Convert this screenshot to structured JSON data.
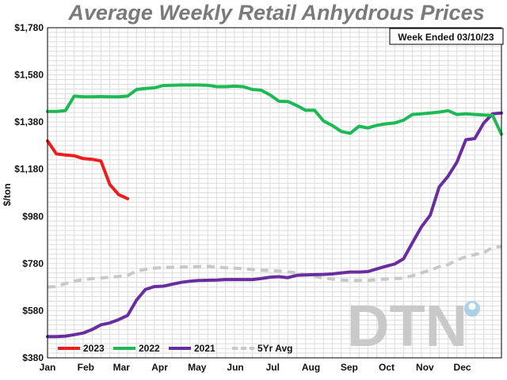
{
  "chart_data": {
    "type": "line",
    "title": "Average Weekly Retail Anhydrous Prices",
    "annotation": "Week Ended 03/10/23",
    "ylabel": "$/ton",
    "xlabel": "",
    "ylim": [
      380,
      1780
    ],
    "xlim": [
      0,
      51
    ],
    "yticks": [
      "$380",
      "$580",
      "$780",
      "$980",
      "$1,180",
      "$1,380",
      "$1,580",
      "$1,780"
    ],
    "ytick_values": [
      380,
      580,
      780,
      980,
      1180,
      1380,
      1580,
      1780
    ],
    "xticks": [
      "Jan",
      "Feb",
      "Mar",
      "Apr",
      "May",
      "Jun",
      "Jul",
      "Aug",
      "Sep",
      "Oct",
      "Nov",
      "Dec"
    ],
    "xtick_values": [
      0,
      4.3,
      8.3,
      12.6,
      16.8,
      21.1,
      25.3,
      29.6,
      33.9,
      38.1,
      42.4,
      46.6
    ],
    "grid": true,
    "legend_position": "bottom-left",
    "watermark": "DTN",
    "series": [
      {
        "name": "2023",
        "color": "#ee1c1c",
        "dashed": false,
        "x": [
          0,
          1,
          2,
          3,
          4,
          5,
          6,
          7,
          8,
          9
        ],
        "y": [
          1300,
          1245,
          1240,
          1237,
          1225,
          1222,
          1215,
          1115,
          1072,
          1055
        ]
      },
      {
        "name": "2022",
        "color": "#1db954",
        "dashed": false,
        "x": [
          0,
          1,
          2,
          3,
          4,
          5,
          6,
          7,
          8,
          9,
          10,
          11,
          12,
          13,
          14,
          15,
          16,
          17,
          18,
          19,
          20,
          21,
          22,
          23,
          24,
          25,
          26,
          27,
          28,
          29,
          30,
          31,
          32,
          33,
          34,
          35,
          36,
          37,
          38,
          39,
          40,
          41,
          42,
          43,
          44,
          45,
          46,
          47,
          48,
          49,
          50,
          51
        ],
        "y": [
          1425,
          1425,
          1428,
          1490,
          1487,
          1487,
          1488,
          1487,
          1487,
          1490,
          1518,
          1522,
          1525,
          1535,
          1536,
          1537,
          1537,
          1537,
          1536,
          1530,
          1530,
          1532,
          1530,
          1518,
          1515,
          1495,
          1468,
          1467,
          1450,
          1430,
          1430,
          1385,
          1365,
          1340,
          1332,
          1362,
          1355,
          1366,
          1372,
          1376,
          1388,
          1412,
          1415,
          1418,
          1422,
          1428,
          1412,
          1415,
          1412,
          1410,
          1408,
          1328
        ]
      },
      {
        "name": "2021",
        "color": "#6a2da0",
        "dashed": false,
        "x": [
          0,
          1,
          2,
          3,
          4,
          5,
          6,
          7,
          8,
          9,
          10,
          11,
          12,
          13,
          14,
          15,
          16,
          17,
          18,
          19,
          20,
          21,
          22,
          23,
          24,
          25,
          26,
          27,
          28,
          29,
          30,
          31,
          32,
          33,
          34,
          35,
          36,
          37,
          38,
          39,
          40,
          41,
          42,
          43,
          44,
          45,
          46,
          47,
          48,
          49,
          50,
          51
        ],
        "y": [
          470,
          470,
          472,
          478,
          485,
          500,
          520,
          528,
          542,
          560,
          625,
          670,
          682,
          684,
          692,
          700,
          705,
          708,
          709,
          710,
          712,
          712,
          712,
          712,
          716,
          722,
          724,
          720,
          730,
          732,
          733,
          734,
          736,
          740,
          744,
          744,
          746,
          757,
          768,
          778,
          800,
          868,
          935,
          985,
          1105,
          1150,
          1210,
          1305,
          1310,
          1375,
          1415,
          1418
        ]
      },
      {
        "name": "5Yr Avg",
        "color": "#c8c8c8",
        "dashed": true,
        "x": [
          0,
          1,
          2,
          3,
          4,
          5,
          6,
          7,
          8,
          9,
          10,
          11,
          12,
          13,
          14,
          15,
          16,
          17,
          18,
          19,
          20,
          21,
          22,
          23,
          24,
          25,
          26,
          27,
          28,
          29,
          30,
          31,
          32,
          33,
          34,
          35,
          36,
          37,
          38,
          39,
          40,
          41,
          42,
          43,
          44,
          45,
          46,
          47,
          48,
          49,
          50,
          51
        ],
        "y": [
          680,
          682,
          695,
          705,
          712,
          716,
          718,
          722,
          725,
          730,
          748,
          755,
          760,
          763,
          764,
          765,
          766,
          767,
          768,
          765,
          762,
          760,
          758,
          755,
          752,
          750,
          748,
          745,
          740,
          733,
          725,
          718,
          714,
          710,
          708,
          708,
          708,
          712,
          714,
          716,
          718,
          728,
          740,
          752,
          766,
          775,
          795,
          808,
          818,
          826,
          848,
          852
        ]
      }
    ]
  }
}
